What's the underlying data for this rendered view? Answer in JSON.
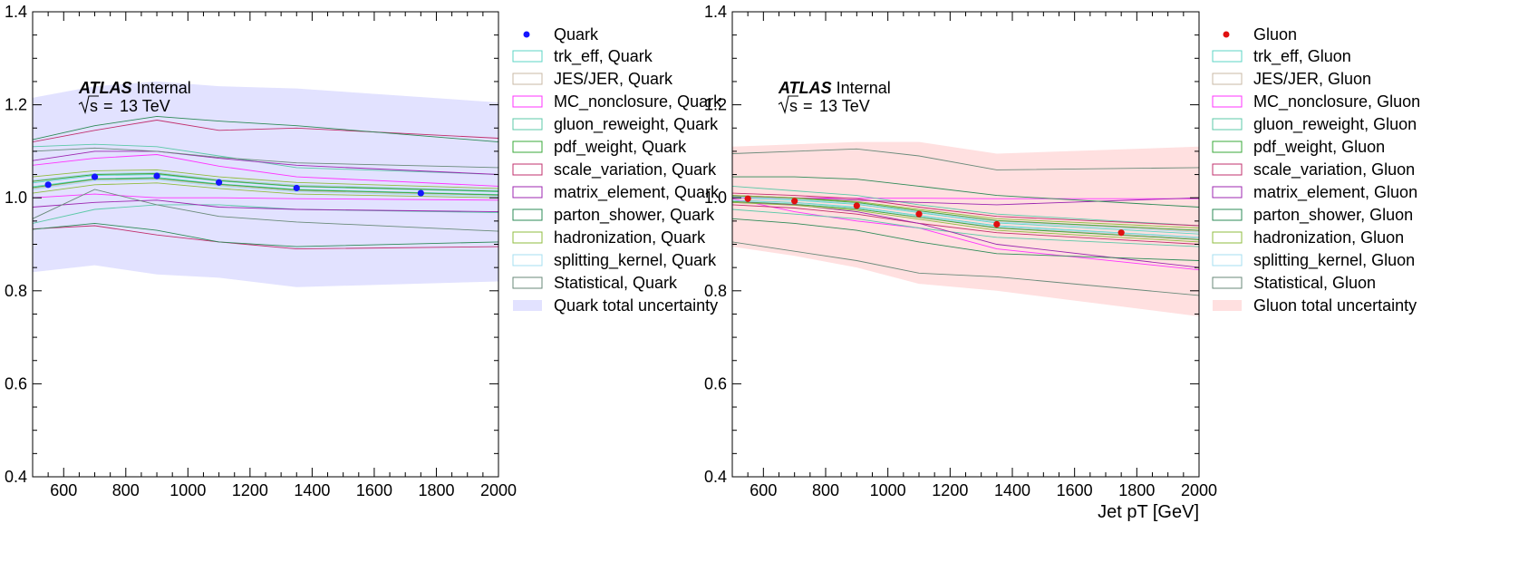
{
  "atlas": {
    "bold": "ATLAS",
    "rest": "Internal",
    "energy": "13 TeV",
    "sqrt_s": "s"
  },
  "chart_data": [
    {
      "type": "line",
      "title": "",
      "xlabel": "",
      "ylabel": "",
      "xlim": [
        500,
        2000
      ],
      "ylim": [
        0.4,
        1.4
      ],
      "xticks": [
        600,
        800,
        1000,
        1200,
        1400,
        1600,
        1800,
        2000
      ],
      "yticks": [
        0.4,
        0.6,
        0.8,
        1.0,
        1.2,
        1.4
      ],
      "grid": false,
      "legend_position": "outside-right",
      "band_x": [
        500,
        700,
        900,
        1100,
        1350,
        2000
      ],
      "points": {
        "name": "Quark",
        "color": "#1515ff",
        "x": [
          550,
          700,
          900,
          1100,
          1350,
          1750
        ],
        "y": [
          1.028,
          1.045,
          1.047,
          1.033,
          1.021,
          1.01
        ]
      },
      "total_uncertainty": {
        "name": "Quark total uncertainty",
        "color": "#e2e2ff",
        "upper": [
          1.215,
          1.24,
          1.25,
          1.24,
          1.235,
          1.205
        ],
        "lower": [
          0.84,
          0.855,
          0.835,
          0.828,
          0.808,
          0.82
        ]
      },
      "series": [
        {
          "name": "trk_eff, Quark",
          "color": "#5cd6c6",
          "upper": [
            1.032,
            1.048,
            1.05,
            1.036,
            1.024,
            1.013
          ],
          "lower": [
            1.024,
            1.041,
            1.044,
            1.03,
            1.018,
            1.007
          ]
        },
        {
          "name": "JES/JER, Quark",
          "color": "#c9b9a5",
          "upper": [
            1.036,
            1.051,
            1.053,
            1.039,
            1.027,
            1.015
          ],
          "lower": [
            1.02,
            1.039,
            1.041,
            1.027,
            1.015,
            1.005
          ]
        },
        {
          "name": "MC_nonclosure, Quark",
          "color": "#ff33ff",
          "upper": [
            1.07,
            1.085,
            1.093,
            1.068,
            1.045,
            1.025
          ],
          "lower": [
            1.0,
            1.008,
            1.0,
            1.0,
            0.998,
            0.995
          ]
        },
        {
          "name": "gluon_reweight, Quark",
          "color": "#5cc9a8",
          "upper": [
            1.11,
            1.115,
            1.11,
            1.09,
            1.065,
            1.05
          ],
          "lower": [
            0.945,
            0.975,
            0.985,
            0.985,
            0.975,
            0.968
          ]
        },
        {
          "name": "pdf_weight, Quark",
          "color": "#3aa83a",
          "upper": [
            1.035,
            1.05,
            1.052,
            1.037,
            1.025,
            1.014
          ],
          "lower": [
            1.022,
            1.04,
            1.042,
            1.029,
            1.017,
            1.006
          ]
        },
        {
          "name": "scale_variation, Quark",
          "color": "#c1306e",
          "upper": [
            1.12,
            1.145,
            1.167,
            1.145,
            1.15,
            1.128
          ],
          "lower": [
            0.933,
            0.94,
            0.92,
            0.905,
            0.89,
            0.895
          ]
        },
        {
          "name": "matrix_element, Quark",
          "color": "#9c27b0",
          "upper": [
            1.08,
            1.1,
            1.1,
            1.085,
            1.07,
            1.05
          ],
          "lower": [
            0.98,
            0.99,
            0.995,
            0.98,
            0.975,
            0.97
          ]
        },
        {
          "name": "parton_shower, Quark",
          "color": "#2e8b57",
          "upper": [
            1.125,
            1.155,
            1.175,
            1.165,
            1.155,
            1.12
          ],
          "lower": [
            0.932,
            0.945,
            0.93,
            0.905,
            0.895,
            0.905
          ]
        },
        {
          "name": "hadronization, Quark",
          "color": "#8fbc3f",
          "upper": [
            1.045,
            1.058,
            1.06,
            1.045,
            1.033,
            1.02
          ],
          "lower": [
            1.01,
            1.028,
            1.032,
            1.02,
            1.008,
            1.0
          ]
        },
        {
          "name": "splitting_kernel, Quark",
          "color": "#a6dff0",
          "upper": [
            1.038,
            1.052,
            1.055,
            1.04,
            1.028,
            1.016
          ],
          "lower": [
            1.018,
            1.036,
            1.038,
            1.025,
            1.013,
            1.003
          ]
        },
        {
          "name": "Statistical, Quark",
          "color": "#6a8a7a",
          "upper": [
            1.1,
            1.107,
            1.1,
            1.087,
            1.075,
            1.065
          ],
          "lower": [
            0.955,
            1.018,
            0.985,
            0.96,
            0.948,
            0.928
          ]
        }
      ]
    },
    {
      "type": "line",
      "title": "",
      "xlabel": "Jet pT [GeV]",
      "ylabel": "",
      "xlim": [
        500,
        2000
      ],
      "ylim": [
        0.4,
        1.4
      ],
      "xticks": [
        600,
        800,
        1000,
        1200,
        1400,
        1600,
        1800,
        2000
      ],
      "yticks": [
        0.4,
        0.6,
        0.8,
        1.0,
        1.2,
        1.4
      ],
      "grid": false,
      "legend_position": "outside-right",
      "band_x": [
        500,
        700,
        900,
        1100,
        1350,
        2000
      ],
      "points": {
        "name": "Gluon",
        "color": "#e01010",
        "x": [
          550,
          700,
          900,
          1100,
          1350,
          1750
        ],
        "y": [
          0.998,
          0.993,
          0.983,
          0.965,
          0.943,
          0.925
        ]
      },
      "total_uncertainty": {
        "name": "Gluon total uncertainty",
        "color": "#ffe0e0",
        "upper": [
          1.11,
          1.115,
          1.12,
          1.12,
          1.095,
          1.11
        ],
        "lower": [
          0.895,
          0.875,
          0.85,
          0.815,
          0.8,
          0.745
        ]
      },
      "series": [
        {
          "name": "trk_eff, Gluon",
          "color": "#5cd6c6",
          "upper": [
            1.0,
            0.995,
            0.986,
            0.968,
            0.946,
            0.922
          ],
          "lower": [
            0.995,
            0.99,
            0.98,
            0.962,
            0.94,
            0.915
          ]
        },
        {
          "name": "JES/JER, Gluon",
          "color": "#c9b9a5",
          "upper": [
            1.003,
            0.998,
            0.989,
            0.971,
            0.95,
            0.928
          ],
          "lower": [
            0.993,
            0.987,
            0.977,
            0.959,
            0.936,
            0.912
          ]
        },
        {
          "name": "MC_nonclosure, Gluon",
          "color": "#ff33ff",
          "upper": [
            1.0,
            1.0,
            0.999,
            0.999,
            0.998,
            0.998
          ],
          "lower": [
            0.998,
            0.97,
            0.95,
            0.935,
            0.89,
            0.845
          ]
        },
        {
          "name": "gluon_reweight, Gluon",
          "color": "#5cc9a8",
          "upper": [
            1.025,
            1.015,
            1.005,
            0.985,
            0.965,
            0.94
          ],
          "lower": [
            0.975,
            0.965,
            0.955,
            0.935,
            0.915,
            0.895
          ]
        },
        {
          "name": "pdf_weight, Gluon",
          "color": "#3aa83a",
          "upper": [
            1.004,
            0.999,
            0.99,
            0.972,
            0.951,
            0.93
          ],
          "lower": [
            0.992,
            0.986,
            0.976,
            0.958,
            0.935,
            0.91
          ]
        },
        {
          "name": "scale_variation, Gluon",
          "color": "#c1306e",
          "upper": [
            1.01,
            1.005,
            0.998,
            0.98,
            0.96,
            0.94
          ],
          "lower": [
            0.985,
            0.978,
            0.965,
            0.945,
            0.925,
            0.9
          ]
        },
        {
          "name": "matrix_element, Gluon",
          "color": "#9c27b0",
          "upper": [
            1.005,
            1.0,
            0.995,
            0.99,
            0.985,
            1.0
          ],
          "lower": [
            0.99,
            0.985,
            0.97,
            0.945,
            0.9,
            0.85
          ]
        },
        {
          "name": "parton_shower, Gluon",
          "color": "#2e8b57",
          "upper": [
            1.045,
            1.045,
            1.04,
            1.025,
            1.005,
            0.98
          ],
          "lower": [
            0.955,
            0.945,
            0.93,
            0.905,
            0.88,
            0.865
          ]
        },
        {
          "name": "hadronization, Gluon",
          "color": "#8fbc3f",
          "upper": [
            1.005,
            1.0,
            0.992,
            0.975,
            0.955,
            0.935
          ],
          "lower": [
            0.99,
            0.984,
            0.973,
            0.954,
            0.93,
            0.905
          ]
        },
        {
          "name": "splitting_kernel, Gluon",
          "color": "#a6dff0",
          "upper": [
            1.002,
            0.997,
            0.988,
            0.97,
            0.948,
            0.926
          ],
          "lower": [
            0.994,
            0.988,
            0.978,
            0.96,
            0.938,
            0.914
          ]
        },
        {
          "name": "Statistical, Gluon",
          "color": "#6a8a7a",
          "upper": [
            1.095,
            1.1,
            1.105,
            1.09,
            1.06,
            1.065
          ],
          "lower": [
            0.905,
            0.885,
            0.865,
            0.838,
            0.83,
            0.79
          ]
        }
      ]
    }
  ]
}
